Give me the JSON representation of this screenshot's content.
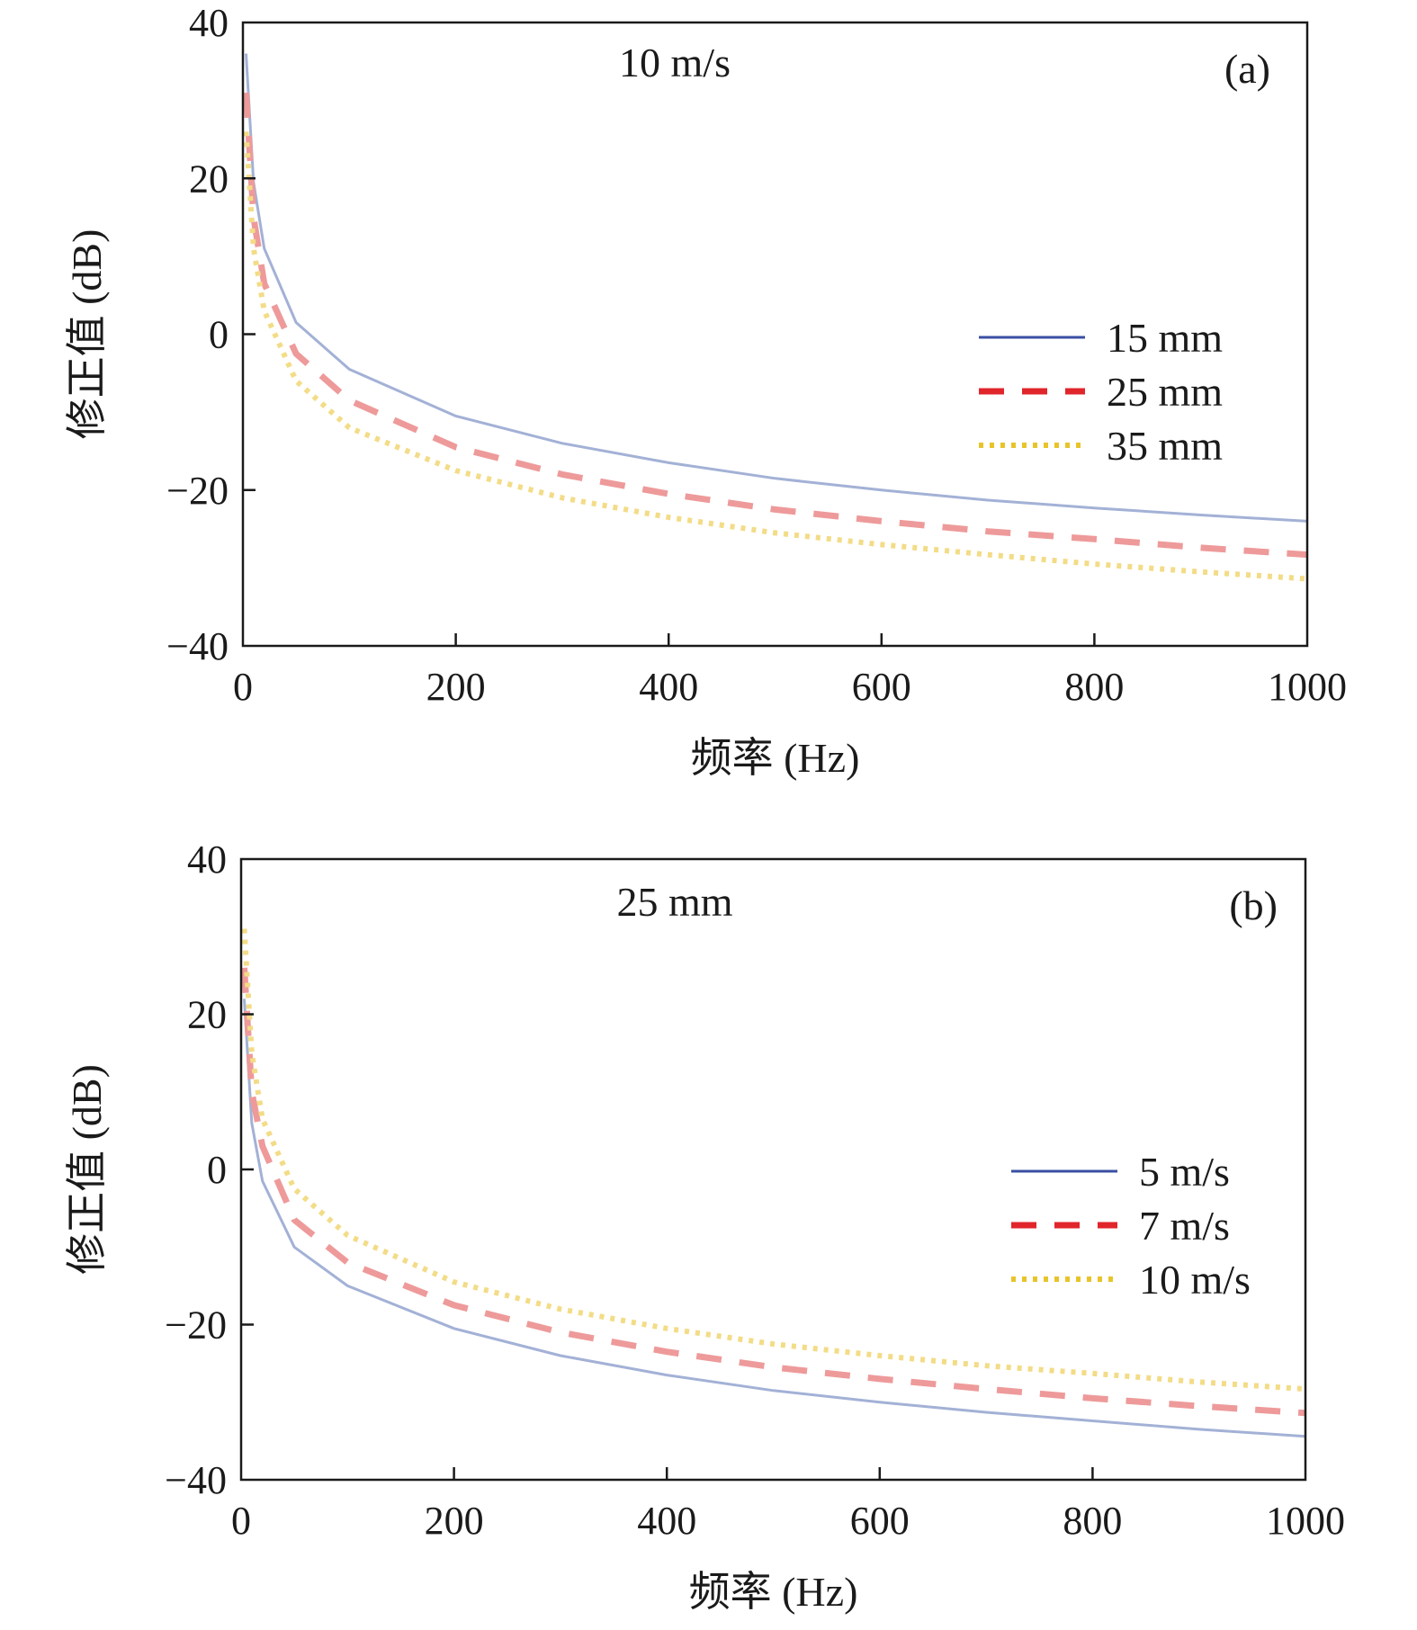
{
  "chart_data": [
    {
      "type": "line",
      "panel_label": "(a)",
      "annotation": "10 m/s",
      "xlabel": "频率  (Hz)",
      "ylabel": "修正值 (dB)",
      "xlim": [
        0,
        1000
      ],
      "ylim": [
        -40,
        40
      ],
      "xticks": [
        "0",
        "200",
        "400",
        "600",
        "800",
        "1000"
      ],
      "yticks": [
        "40",
        "20",
        "0",
        "−20",
        "−40"
      ],
      "xtick_values": [
        0,
        200,
        400,
        600,
        800,
        1000
      ],
      "ytick_values": [
        40,
        20,
        0,
        -20,
        -40
      ],
      "grid": false,
      "legend_position": "right",
      "x": [
        3,
        10,
        20,
        50,
        100,
        200,
        300,
        400,
        500,
        600,
        700,
        800,
        900,
        1000
      ],
      "series": [
        {
          "name": "15 mm",
          "color": "#a3b1d6",
          "legend_color": "#3a4fa3",
          "dash": "solid",
          "values": [
            36,
            19.5,
            11,
            1.5,
            -4.5,
            -10.5,
            -14,
            -16.5,
            -18.5,
            -20,
            -21.3,
            -22.3,
            -23.2,
            -24
          ]
        },
        {
          "name": "25 mm",
          "color": "#ee9a9a",
          "legend_color": "#e0252b",
          "dash": "dashed",
          "values": [
            31,
            15,
            6.5,
            -2.5,
            -8.5,
            -14.5,
            -18,
            -20.5,
            -22.5,
            -24,
            -25.3,
            -26.3,
            -27.4,
            -28.3
          ]
        },
        {
          "name": "35 mm",
          "color": "#f3dc87",
          "legend_color": "#e8c42a",
          "dash": "dotted",
          "values": [
            26,
            11,
            3,
            -6,
            -12,
            -17.5,
            -21,
            -23.5,
            -25.5,
            -27,
            -28.3,
            -29.5,
            -30.5,
            -31.4
          ]
        }
      ]
    },
    {
      "type": "line",
      "panel_label": "(b)",
      "annotation": "25 mm",
      "xlabel": "频率  (Hz)",
      "ylabel": "修正值 (dB)",
      "xlim": [
        0,
        1000
      ],
      "ylim": [
        -40,
        40
      ],
      "xticks": [
        "0",
        "200",
        "400",
        "600",
        "800",
        "1000"
      ],
      "yticks": [
        "40",
        "20",
        "0",
        "−20",
        "−40"
      ],
      "xtick_values": [
        0,
        200,
        400,
        600,
        800,
        1000
      ],
      "ytick_values": [
        40,
        20,
        0,
        -20,
        -40
      ],
      "grid": false,
      "legend_position": "right",
      "x": [
        3,
        10,
        20,
        50,
        100,
        200,
        300,
        400,
        500,
        600,
        700,
        800,
        900,
        1000
      ],
      "series": [
        {
          "name": "5 m/s",
          "color": "#a3b1d6",
          "legend_color": "#3a4fa3",
          "dash": "solid",
          "values": [
            22,
            6,
            -1.5,
            -10,
            -15,
            -20.5,
            -24,
            -26.5,
            -28.5,
            -30,
            -31.3,
            -32.4,
            -33.5,
            -34.4
          ]
        },
        {
          "name": "7 m/s",
          "color": "#ee9a9a",
          "legend_color": "#e0252b",
          "dash": "dashed",
          "values": [
            26,
            10,
            3,
            -6.5,
            -12,
            -17.5,
            -21,
            -23.5,
            -25.5,
            -27,
            -28.3,
            -29.5,
            -30.5,
            -31.4
          ]
        },
        {
          "name": "10 m/s",
          "color": "#f3dc87",
          "legend_color": "#e8c42a",
          "dash": "dotted",
          "values": [
            31,
            15,
            6.5,
            -2.5,
            -8.5,
            -14.5,
            -18,
            -20.5,
            -22.5,
            -24,
            -25.3,
            -26.3,
            -27.4,
            -28.3
          ]
        }
      ]
    }
  ]
}
